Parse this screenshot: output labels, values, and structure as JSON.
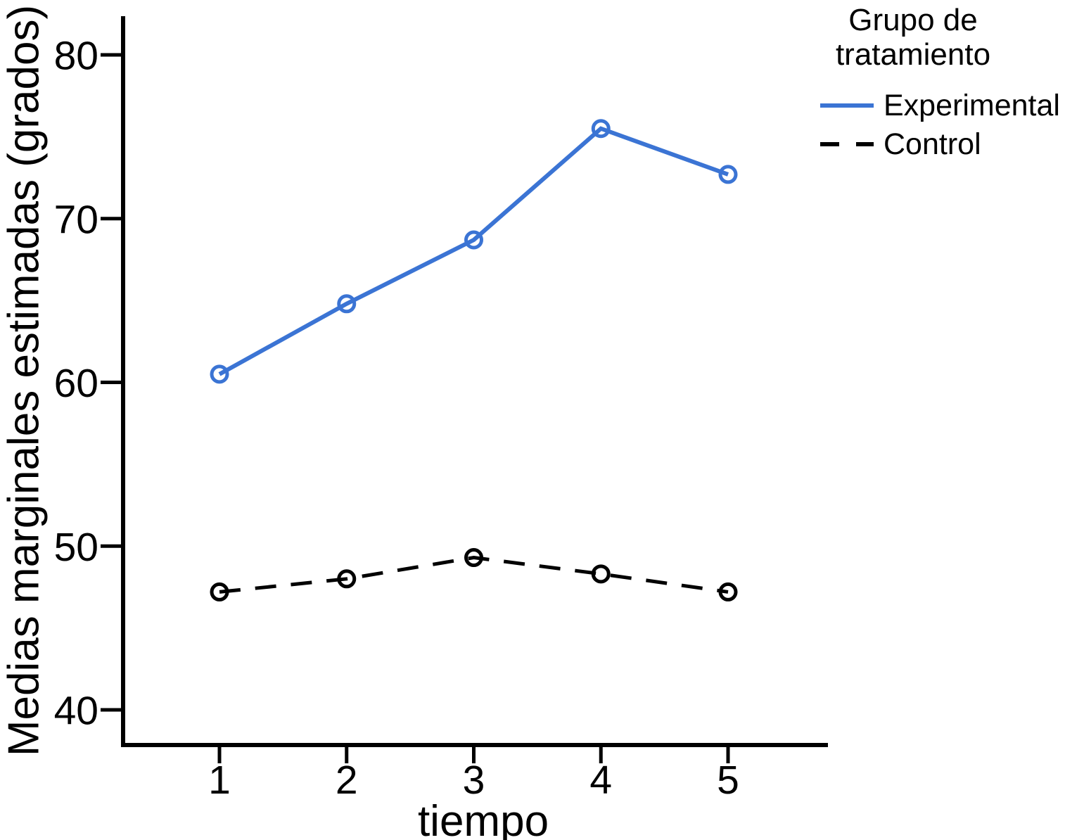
{
  "figure": {
    "background": "#ffffff",
    "axis_color": "#000000",
    "accent_blue": "#3b74d4"
  },
  "chart_data": {
    "type": "line",
    "title": "",
    "x": [
      1,
      2,
      3,
      4,
      5
    ],
    "x_tick_labels": [
      "1",
      "2",
      "3",
      "4",
      "5"
    ],
    "y_ticks": [
      40,
      50,
      60,
      70,
      80
    ],
    "y_tick_labels": [
      "40",
      "50",
      "60",
      "70",
      "80"
    ],
    "xlabel": "tiempo",
    "ylabel": "Medias marginales estimadas (grados)",
    "xlim": [
      0.23,
      5.8
    ],
    "ylim": [
      37.9,
      82.4
    ],
    "grid": false,
    "legend_position": "outside-top-right",
    "series": [
      {
        "name": "Experimental",
        "values": [
          60.5,
          64.8,
          68.7,
          75.5,
          72.7
        ],
        "color": "#3b74d4",
        "line_style": "solid",
        "line_width": 6,
        "marker": "open-circle"
      },
      {
        "name": "Control",
        "values": [
          47.2,
          48.0,
          49.3,
          48.3,
          47.2
        ],
        "color": "#000000",
        "line_style": "dashed",
        "line_width": 5,
        "marker": "open-circle"
      }
    ]
  },
  "legend": {
    "title": "Grupo de\ntratamiento",
    "items": [
      {
        "label": "Experimental"
      },
      {
        "label": "Control"
      }
    ]
  }
}
